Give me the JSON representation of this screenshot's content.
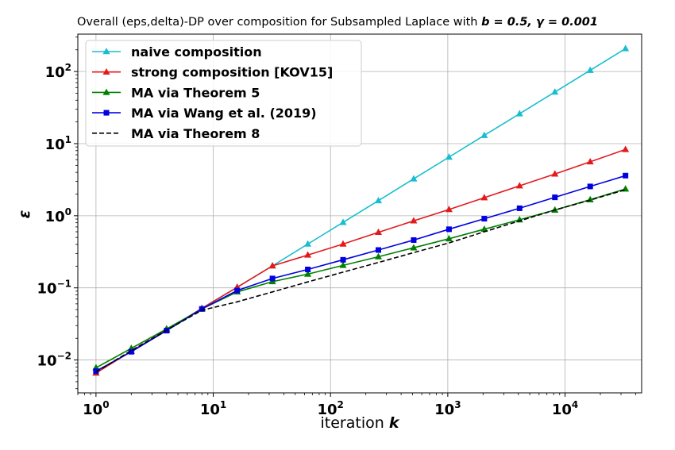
{
  "chart_data": {
    "type": "line",
    "title_prefix": "Overall (eps,delta)-DP over composition for Subsampled Laplace with ",
    "title_params": "b = 0.5, γ = 0.001",
    "xlabel_text": "iteration ",
    "xlabel_var": "k",
    "ylabel": "ε",
    "xscale": "log",
    "yscale": "log",
    "xlim": [
      0.7,
      45000
    ],
    "ylim": [
      0.0035,
      330
    ],
    "grid": true,
    "legend_position": "upper-left",
    "x_tick_labels": [
      {
        "base": "10",
        "exp": "0",
        "value": 1
      },
      {
        "base": "10",
        "exp": "1",
        "value": 10
      },
      {
        "base": "10",
        "exp": "2",
        "value": 100
      },
      {
        "base": "10",
        "exp": "3",
        "value": 1000
      },
      {
        "base": "10",
        "exp": "4",
        "value": 10000
      }
    ],
    "y_tick_labels": [
      {
        "base": "10",
        "exp": "−2",
        "value": 0.01
      },
      {
        "base": "10",
        "exp": "−1",
        "value": 0.1
      },
      {
        "base": "10",
        "exp": "0",
        "value": 1
      },
      {
        "base": "10",
        "exp": "1",
        "value": 10
      },
      {
        "base": "10",
        "exp": "2",
        "value": 100
      }
    ],
    "x": [
      1,
      2,
      4,
      8,
      16,
      32,
      64,
      128,
      256,
      512,
      1024,
      2048,
      4096,
      8192,
      16384,
      32768
    ],
    "series": [
      {
        "name": "naive composition",
        "color": "#17becf",
        "marker": "triangle",
        "dash": false,
        "values": [
          0.0066,
          0.0132,
          0.026,
          0.052,
          0.102,
          0.202,
          0.405,
          0.81,
          1.62,
          3.25,
          6.5,
          13,
          26,
          52,
          104,
          208
        ]
      },
      {
        "name": "strong composition [KOV15]",
        "color": "#e31a1c",
        "marker": "triangle",
        "dash": false,
        "values": [
          0.0066,
          0.0132,
          0.026,
          0.052,
          0.102,
          0.202,
          0.285,
          0.405,
          0.59,
          0.85,
          1.22,
          1.78,
          2.6,
          3.8,
          5.6,
          8.3
        ]
      },
      {
        "name": "MA via Theorem 5",
        "color": "#008000",
        "marker": "triangle",
        "dash": false,
        "values": [
          0.0078,
          0.0145,
          0.027,
          0.051,
          0.088,
          0.122,
          0.155,
          0.205,
          0.27,
          0.36,
          0.48,
          0.65,
          0.88,
          1.2,
          1.67,
          2.35
        ]
      },
      {
        "name": "MA via Wang et al. (2019)",
        "color": "#0000e0",
        "marker": "square",
        "dash": false,
        "values": [
          0.007,
          0.013,
          0.0255,
          0.051,
          0.092,
          0.135,
          0.18,
          0.245,
          0.335,
          0.46,
          0.65,
          0.91,
          1.27,
          1.8,
          2.55,
          3.6
        ]
      },
      {
        "name": "MA via Theorem 8",
        "color": "#000000",
        "marker": "none",
        "dash": true,
        "values": [
          0.0068,
          0.0135,
          0.026,
          0.049,
          0.064,
          0.088,
          0.121,
          0.165,
          0.225,
          0.308,
          0.42,
          0.6,
          0.85,
          1.2,
          1.65,
          2.3
        ]
      }
    ]
  }
}
